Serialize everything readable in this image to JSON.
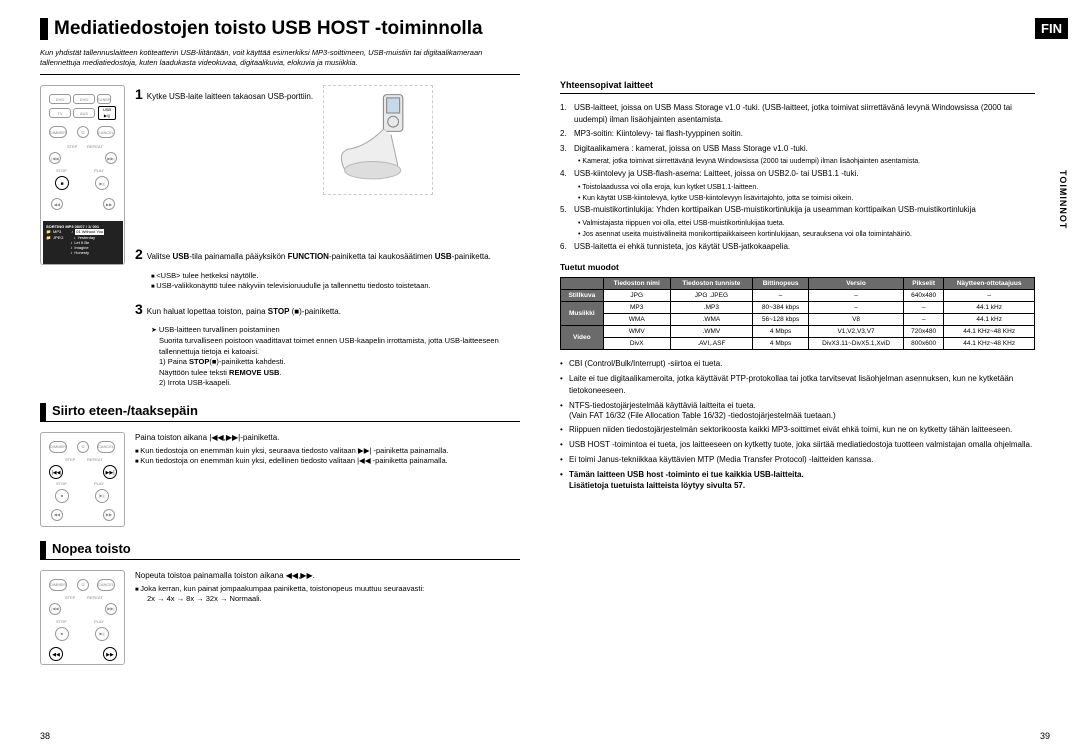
{
  "lang_badge": "FIN",
  "side_tab": "TOIMINNOT",
  "page_left_num": "38",
  "page_right_num": "39",
  "main_title": "Mediatiedostojen toisto USB HOST -toiminnolla",
  "intro": "Kun yhdistät tallennuslaitteen kotiteatterin USB-liitäntään, voit käyttää esimerkiksi MP3-soittimeen, USB-muistiin tai digitaalikameraan tallennettuja mediatiedostoja, kuten laadukasta videokuvaa, digitaalikuvia, elokuvia ja musiikkia.",
  "step1": "Kytke USB-laite laitteen takaosan USB-porttiin.",
  "step2_prefix": "Valitse ",
  "step2_mid": "-tila painamalla pääyksikön ",
  "step2_end": "-painiketta tai kaukosäätimen ",
  "step2_tail": "-painiketta.",
  "step2_bold1": "USB",
  "step2_bold2": "FUNCTION",
  "step2_bold3": "USB",
  "step2_b1": "<USB> tulee hetkeksi näytölle.",
  "step2_b2": "USB-valikkonäyttö tulee näkyviin televisioruudulle ja tallennettu tiedosto toistetaan.",
  "step3_prefix": "Kun haluat lopettaa toiston, paina ",
  "step3_bold": "STOP",
  "step3_suffix": " (■)-painiketta.",
  "safe_remove_title": "USB-laitteen turvallinen poistaminen",
  "safe_remove_body": "Suorita turvalliseen poistoon vaadittavat toimet ennen USB-kaapelin irrottamista, jotta USB-laitteeseen tallennettuja tietoja ei katoaisi.",
  "safe_remove_1a": "1) Paina ",
  "safe_remove_1b": "STOP",
  "safe_remove_1c": "(■)-painiketta kahdesti.",
  "safe_remove_2a": "   Näyttöön tulee teksti ",
  "safe_remove_2b": "REMOVE USB",
  "safe_remove_2c": ".",
  "safe_remove_3": "2) Irrota USB-kaapeli.",
  "section_skip_title": "Siirto eteen-/taaksepäin",
  "skip_main": "Paina toiston aikana |◀◀,▶▶|-painiketta.",
  "skip_b1": "Kun tiedostoja on enemmän kuin yksi, seuraava tiedosto valitaan ▶▶| -painiketta painamalla.",
  "skip_b2": "Kun tiedostoja on enemmän kuin yksi, edellinen tiedosto valitaan |◀◀ -painiketta painamalla.",
  "section_fast_title": "Nopea toisto",
  "fast_main": "Nopeuta toistoa painamalla toiston aikana ◀◀,▶▶.",
  "fast_b1": "Joka kerran, kun painat jompaakumpaa painiketta, toistonopeus muuttuu seuraavasti:",
  "fast_seq": "2x → 4x → 8x → 32x → Normaali.",
  "right_heading1": "Yhteensopivat laitteet",
  "compat": {
    "i1": "USB-laitteet, joissa on USB Mass Storage v1.0 -tuki. (USB-laitteet, jotka toimivat siirrettävänä levynä Windowsissa (2000 tai uudempi) ilman lisäohjainten asentamista.",
    "i2": "MP3-soitin: Kiintolevy- tai flash-tyyppinen soitin.",
    "i3": "Digitaalikamera : kamerat, joissa on USB Mass Storage v1.0 -tuki.",
    "i3s": "Kamerat, jotka toimivat siirrettävänä levynä Windowsissa (2000 tai uudempi) ilman lisäohjainten asentamista.",
    "i4": "USB-kiintolevy ja USB-flash-asema: Laitteet, joissa on USB2.0- tai USB1.1 -tuki.",
    "i4s1": "Toistolaadussa voi olla eroja, kun kytket USB1.1-laitteen.",
    "i4s2": "Kun käytät USB-kiintolevyä, kytke USB-kiintolevyyn lisävirtajohto, jotta se toimisi oikein.",
    "i5": "USB-muistikortinlukija: Yhden korttipaikan USB-muistikortinlukija ja useamman korttipaikan USB-muistikortinlukija",
    "i5s1": "Valmistajasta riippuen voi olla, ettei USB-muistikortinlukijaa tueta.",
    "i5s2": "Jos asennat useita muistivälineitä monikorttipaikkaiseen kortinlukijaan, seurauksena voi olla toimintahäiriö.",
    "i6": "USB-laitetta ei ehkä tunnisteta, jos käytät USB-jatkokaapelia."
  },
  "formats_head": "Tuetut muodot",
  "table": {
    "columns": [
      "",
      "Tiedoston nimi",
      "Tiedoston tunniste",
      "Bittinopeus",
      "Versio",
      "Pikselit",
      "Näytteen-ottotaajuus"
    ],
    "rows": [
      [
        "Stillkuva",
        "JPG",
        "JPG .JPEG",
        "–",
        "–",
        "640x480",
        "–"
      ],
      [
        "Musiikki",
        "MP3",
        ".MP3",
        "80~384 kbps",
        "–",
        "–",
        "44.1 kHz"
      ],
      [
        "",
        "WMA",
        ".WMA",
        "56~128 kbps",
        "V8",
        "–",
        "44.1 kHz"
      ],
      [
        "Video",
        "WMV",
        ".WMV",
        "4 Mbps",
        "V1,V2,V3,V7",
        "720x480",
        "44.1 KHz~48 KHz"
      ],
      [
        "",
        "DivX",
        ".AVI,.ASF",
        "4 Mbps",
        "DivX3.11~DivX5.1,XviD",
        "800x600",
        "44.1 KHz~48 KHz"
      ]
    ],
    "row_merge": [
      1,
      2,
      1,
      2,
      1
    ],
    "colors": {
      "header_bg": "#6b6b6b",
      "header_fg": "#ffffff",
      "border": "#000000"
    }
  },
  "post": {
    "p1": "CBI (Control/Bulk/Interrupt) -siirtoa ei tueta.",
    "p2": "Laite ei tue digitaalikameroita, jotka käyttävät PTP-protokollaa tai jotka tarvitsevat lisäohjelman asennuksen, kun ne kytketään tietokoneeseen.",
    "p3": "NTFS-tiedostojärjestelmää käyttäviä laitteita ei tueta.",
    "p3s": "(Vain FAT 16/32 (File Allocation Table 16/32) -tiedostojärjestelmää tuetaan.)",
    "p4": "Riippuen niiden tiedostojärjestelmän sektorikoosta kaikki MP3-soittimet eivät ehkä toimi, kun ne on kytketty tähän laitteeseen.",
    "p5": "USB HOST -toimintoa ei tueta, jos laitteeseen on kytketty tuote, joka siirtää mediatiedostoja tuotteen valmistajan omalla ohjelmalla.",
    "p6": "Ei toimi Janus-tekniikkaa käyttävien MTP (Media Transfer Protocol) -laitteiden kanssa.",
    "p7": "Tämän laitteen USB host -toiminto ei tue kaikkia USB-laitteita.",
    "p8": "Lisätietoja tuetuista laitteista löytyy sivulta 57."
  },
  "lcd": {
    "top": "SORTING   MP3         00/07 / 1/ 001",
    "folder1": "MP3",
    "folder2": "JPEG",
    "f1": "01 Without You",
    "f2": "Yesterday",
    "f3": "Let It Be",
    "f4": "Imagine",
    "f5": "Honesty"
  }
}
